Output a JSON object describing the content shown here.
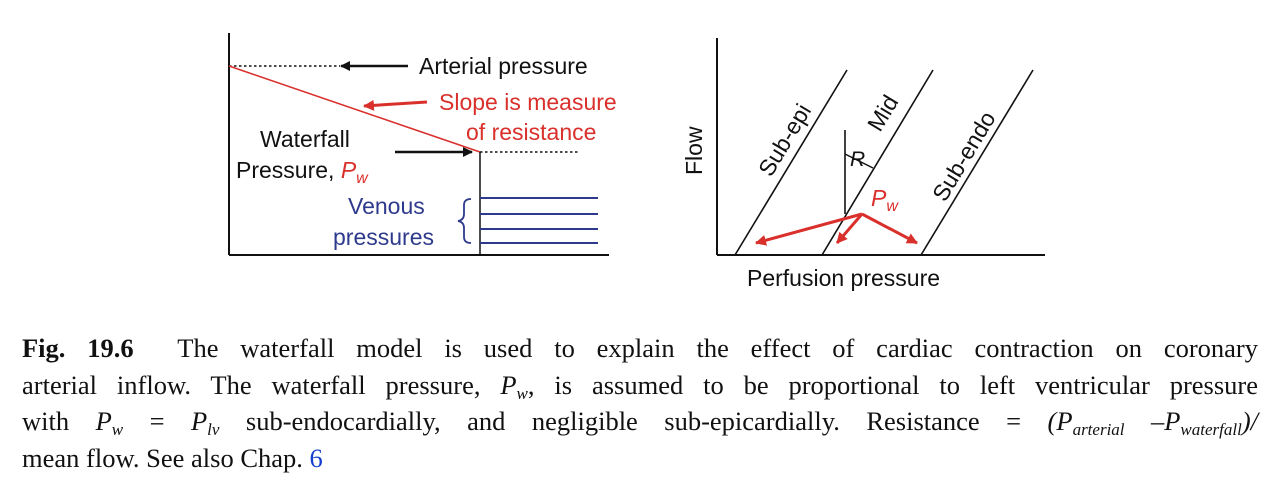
{
  "left_panel": {
    "arterial_label": "Arterial pressure",
    "slope_line1": "Slope is measure",
    "slope_line2": "of resistance",
    "waterfall_line1": "Waterfall",
    "waterfall_line2": "Pressure, ",
    "pw_symbol": "P",
    "pw_sub": "w",
    "venous_line1": "Venous",
    "venous_line2": "pressures"
  },
  "right_panel": {
    "y_label": "Flow",
    "x_label": "Perfusion pressure",
    "line_labels": [
      "Sub-epi",
      "Mid",
      "Sub-endo"
    ],
    "angle_label": "R",
    "pw_symbol": "P",
    "pw_sub": "w"
  },
  "caption": {
    "fig_label": "Fig. 19.6",
    "l1": "The waterfall model is used to explain the effect of cardiac contraction on coronary",
    "l2a": "arterial inflow. The waterfall pressure, ",
    "pw": "P",
    "w": "w",
    "l2b": ", is assumed to be proportional to left ventricular pressure",
    "l3a": "with ",
    "l3eq": " = ",
    "plv": "P",
    "lv": "lv",
    "l3b": " sub-endocardially, and negligible sub-epicardially. Resistance = ",
    "res_open": "(P",
    "arterial": "arterial",
    "minus": " –P",
    "waterfall": "waterfall",
    "res_close": ")/",
    "l4a": "mean flow. See also Chap. ",
    "chap": "6"
  },
  "colors": {
    "red": "#d9302c",
    "navy": "#2e3a8c",
    "black": "#111111"
  }
}
